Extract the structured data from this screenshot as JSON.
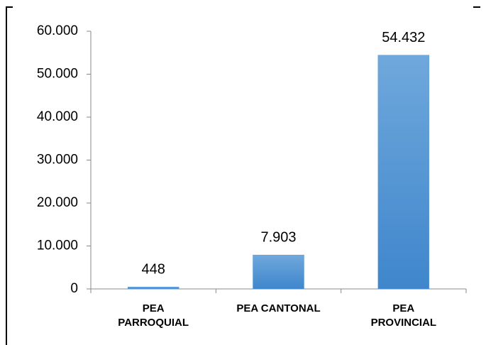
{
  "chart_data": {
    "type": "bar",
    "categories": [
      "PEA\nPARROQUIAL",
      "PEA CANTONAL",
      "PEA\nPROVINCIAL"
    ],
    "values": [
      448,
      7903,
      54432
    ],
    "value_labels": [
      "448",
      "7.903",
      "54.432"
    ],
    "color": "#5b9bd5",
    "ylim": [
      0,
      60000
    ],
    "yticks": [
      0,
      {
        "value": 10000,
        "label": "10.000"
      },
      {
        "value": 20000,
        "label": "20.000"
      },
      {
        "value": 30000,
        "label": "30.000"
      },
      {
        "value": 40000,
        "label": "40.000"
      },
      {
        "value": 50000,
        "label": "50.000"
      },
      {
        "value": 60000,
        "label": "60.000"
      }
    ],
    "grid": false
  }
}
